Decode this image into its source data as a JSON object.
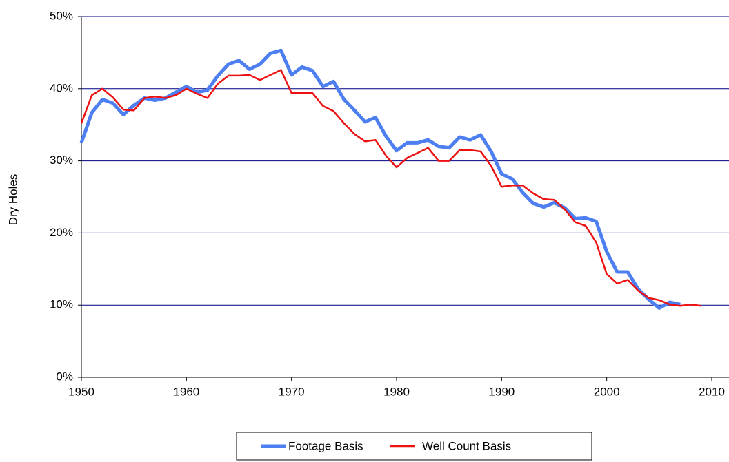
{
  "chart_data": {
    "type": "line",
    "x": [
      1950,
      1951,
      1952,
      1953,
      1954,
      1955,
      1956,
      1957,
      1958,
      1959,
      1960,
      1961,
      1962,
      1963,
      1964,
      1965,
      1966,
      1967,
      1968,
      1969,
      1970,
      1971,
      1972,
      1973,
      1974,
      1975,
      1976,
      1977,
      1978,
      1979,
      1980,
      1981,
      1982,
      1983,
      1984,
      1985,
      1986,
      1987,
      1988,
      1989,
      1990,
      1991,
      1992,
      1993,
      1994,
      1995,
      1996,
      1997,
      1998,
      1999,
      2000,
      2001,
      2002,
      2003,
      2004,
      2005,
      2006,
      2007,
      2008,
      2009
    ],
    "series": [
      {
        "name": "Footage Basis",
        "color": "#4d7ff0",
        "values": [
          32.5,
          36.7,
          38.5,
          38.0,
          36.4,
          37.7,
          38.7,
          38.4,
          38.7,
          39.5,
          40.3,
          39.5,
          39.8,
          41.8,
          43.4,
          43.9,
          42.7,
          43.4,
          44.9,
          45.3,
          41.9,
          43.0,
          42.5,
          40.3,
          41.0,
          38.5,
          37.0,
          35.4,
          36.0,
          33.4,
          31.4,
          32.5,
          32.5,
          32.9,
          32.0,
          31.8,
          33.3,
          32.9,
          33.6,
          31.3,
          28.2,
          27.5,
          25.6,
          24.1,
          23.6,
          24.2,
          23.5,
          22.0,
          22.1,
          21.6,
          17.4,
          14.6,
          14.6,
          12.2,
          10.8,
          9.6,
          10.4,
          10.1,
          null,
          null
        ]
      },
      {
        "name": "Well Count Basis",
        "color": "#ee1111",
        "values": [
          35.2,
          39.1,
          40.0,
          38.8,
          37.1,
          37.0,
          38.7,
          38.9,
          38.7,
          39.1,
          40.0,
          39.3,
          38.7,
          40.7,
          41.8,
          41.8,
          41.9,
          41.2,
          41.9,
          42.6,
          39.4,
          39.4,
          39.4,
          37.6,
          36.9,
          35.2,
          33.7,
          32.7,
          32.9,
          30.7,
          29.1,
          30.4,
          31.1,
          31.8,
          30.0,
          30.0,
          31.5,
          31.5,
          31.3,
          29.3,
          26.4,
          26.6,
          26.6,
          25.5,
          24.7,
          24.6,
          23.3,
          21.5,
          21.0,
          18.7,
          14.3,
          13.0,
          13.5,
          12.0,
          11.0,
          10.7,
          10.1,
          9.9,
          10.1,
          9.9
        ]
      }
    ],
    "ylabel": "Dry Holes",
    "xlim": [
      1950,
      2010
    ],
    "xticks": [
      1950,
      1960,
      1970,
      1980,
      1990,
      2000,
      2010
    ],
    "ylim": [
      0,
      50
    ],
    "yticks": [
      {
        "value": 0,
        "label": "0%"
      },
      {
        "value": 10,
        "label": "10%"
      },
      {
        "value": 20,
        "label": "20%"
      },
      {
        "value": 30,
        "label": "30%"
      },
      {
        "value": 40,
        "label": "40%"
      },
      {
        "value": 50,
        "label": "50%"
      }
    ],
    "grid": true,
    "legend": "bottom"
  }
}
